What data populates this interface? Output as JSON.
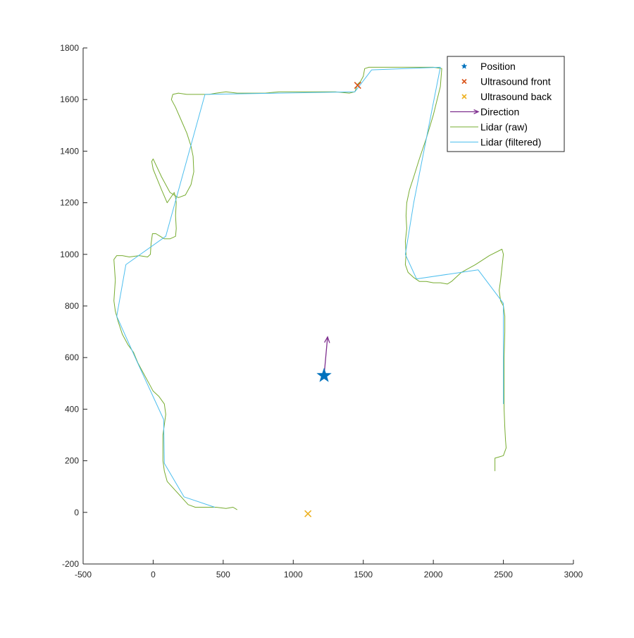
{
  "chart_data": {
    "type": "line",
    "title": "",
    "xlabel": "",
    "ylabel": "",
    "xlim": [
      -500,
      3000
    ],
    "ylim": [
      -200,
      1800
    ],
    "xticks": [
      -500,
      0,
      500,
      1000,
      1500,
      2000,
      2500,
      3000
    ],
    "yticks": [
      -200,
      0,
      200,
      400,
      600,
      800,
      1000,
      1200,
      1400,
      1600,
      1800
    ],
    "x_tick_labels": [
      "-500",
      "0",
      "500",
      "1000",
      "1500",
      "2000",
      "2500",
      "3000"
    ],
    "y_tick_labels": [
      "-200",
      "0",
      "200",
      "400",
      "600",
      "800",
      "1000",
      "1200",
      "1400",
      "1600",
      "1800"
    ],
    "grid": false,
    "legend_position": "top-right",
    "series": [
      {
        "name": "Position",
        "kind": "marker",
        "marker": "star",
        "color": "#0072BD",
        "points": [
          [
            1220,
            530
          ]
        ]
      },
      {
        "name": "Ultrasound front",
        "kind": "marker",
        "marker": "x",
        "color": "#D95319",
        "points": [
          [
            1460,
            1655
          ]
        ]
      },
      {
        "name": "Ultrasound back",
        "kind": "marker",
        "marker": "x",
        "color": "#EDB120",
        "points": [
          [
            1105,
            -5
          ]
        ]
      },
      {
        "name": "Direction",
        "kind": "arrow",
        "color": "#7E2F8E",
        "from": [
          1220,
          530
        ],
        "to": [
          1245,
          680
        ]
      },
      {
        "name": "Lidar (raw)",
        "kind": "line",
        "color": "#77AC30",
        "points": [
          [
            600,
            10
          ],
          [
            570,
            20
          ],
          [
            520,
            15
          ],
          [
            450,
            20
          ],
          [
            400,
            20
          ],
          [
            300,
            20
          ],
          [
            250,
            30
          ],
          [
            200,
            60
          ],
          [
            150,
            90
          ],
          [
            100,
            120
          ],
          [
            80,
            160
          ],
          [
            70,
            200
          ],
          [
            70,
            260
          ],
          [
            70,
            300
          ],
          [
            80,
            340
          ],
          [
            90,
            380
          ],
          [
            80,
            420
          ],
          [
            40,
            450
          ],
          [
            0,
            470
          ],
          [
            -30,
            500
          ],
          [
            -80,
            550
          ],
          [
            -110,
            580
          ],
          [
            -140,
            620
          ],
          [
            -180,
            650
          ],
          [
            -220,
            690
          ],
          [
            -250,
            740
          ],
          [
            -270,
            780
          ],
          [
            -280,
            820
          ],
          [
            -275,
            860
          ],
          [
            -270,
            900
          ],
          [
            -275,
            940
          ],
          [
            -280,
            980
          ],
          [
            -260,
            995
          ],
          [
            -220,
            995
          ],
          [
            -170,
            990
          ],
          [
            -100,
            995
          ],
          [
            -40,
            990
          ],
          [
            -20,
            1000
          ],
          [
            -15,
            1040
          ],
          [
            -5,
            1080
          ],
          [
            20,
            1080
          ],
          [
            50,
            1070
          ],
          [
            80,
            1060
          ],
          [
            120,
            1060
          ],
          [
            160,
            1070
          ],
          [
            165,
            1100
          ],
          [
            160,
            1150
          ],
          [
            165,
            1200
          ],
          [
            160,
            1220
          ],
          [
            150,
            1240
          ],
          [
            100,
            1200
          ],
          [
            60,
            1250
          ],
          [
            30,
            1290
          ],
          [
            0,
            1330
          ],
          [
            -10,
            1360
          ],
          [
            0,
            1370
          ],
          [
            60,
            1300
          ],
          [
            120,
            1240
          ],
          [
            180,
            1220
          ],
          [
            230,
            1230
          ],
          [
            270,
            1270
          ],
          [
            290,
            1320
          ],
          [
            285,
            1380
          ],
          [
            270,
            1420
          ],
          [
            240,
            1470
          ],
          [
            200,
            1520
          ],
          [
            160,
            1570
          ],
          [
            130,
            1600
          ],
          [
            140,
            1620
          ],
          [
            180,
            1625
          ],
          [
            240,
            1620
          ],
          [
            300,
            1620
          ],
          [
            350,
            1620
          ],
          [
            400,
            1620
          ],
          [
            450,
            1625
          ],
          [
            520,
            1630
          ],
          [
            600,
            1625
          ],
          [
            700,
            1625
          ],
          [
            800,
            1625
          ],
          [
            900,
            1630
          ],
          [
            1000,
            1630
          ],
          [
            1100,
            1630
          ],
          [
            1200,
            1630
          ],
          [
            1300,
            1630
          ],
          [
            1400,
            1625
          ],
          [
            1440,
            1630
          ],
          [
            1460,
            1660
          ],
          [
            1480,
            1670
          ],
          [
            1500,
            1690
          ],
          [
            1510,
            1720
          ],
          [
            1540,
            1725
          ],
          [
            1600,
            1725
          ],
          [
            1700,
            1725
          ],
          [
            1800,
            1725
          ],
          [
            1900,
            1725
          ],
          [
            2000,
            1725
          ],
          [
            2060,
            1720
          ],
          [
            2050,
            1650
          ],
          [
            2000,
            1540
          ],
          [
            1950,
            1450
          ],
          [
            1900,
            1370
          ],
          [
            1860,
            1300
          ],
          [
            1830,
            1250
          ],
          [
            1810,
            1200
          ],
          [
            1805,
            1150
          ],
          [
            1810,
            1100
          ],
          [
            1800,
            1050
          ],
          [
            1805,
            1000
          ],
          [
            1800,
            960
          ],
          [
            1820,
            930
          ],
          [
            1860,
            910
          ],
          [
            1900,
            895
          ],
          [
            1950,
            895
          ],
          [
            2000,
            890
          ],
          [
            2050,
            890
          ],
          [
            2100,
            885
          ],
          [
            2130,
            895
          ],
          [
            2200,
            930
          ],
          [
            2300,
            960
          ],
          [
            2400,
            995
          ],
          [
            2490,
            1020
          ],
          [
            2500,
            1000
          ],
          [
            2490,
            950
          ],
          [
            2480,
            900
          ],
          [
            2470,
            860
          ],
          [
            2480,
            820
          ],
          [
            2500,
            800
          ],
          [
            2510,
            760
          ],
          [
            2510,
            700
          ],
          [
            2505,
            600
          ],
          [
            2505,
            500
          ],
          [
            2505,
            400
          ],
          [
            2510,
            330
          ],
          [
            2515,
            280
          ],
          [
            2520,
            250
          ],
          [
            2500,
            220
          ],
          [
            2470,
            215
          ],
          [
            2440,
            210
          ],
          [
            2440,
            190
          ],
          [
            2440,
            160
          ]
        ]
      },
      {
        "name": "Lidar (filtered)",
        "kind": "line",
        "color": "#4DBEEE",
        "points": [
          [
            440,
            20
          ],
          [
            220,
            60
          ],
          [
            80,
            190
          ],
          [
            75,
            360
          ],
          [
            -120,
            590
          ],
          [
            -260,
            760
          ],
          [
            -195,
            960
          ],
          [
            90,
            1070
          ],
          [
            370,
            1620
          ],
          [
            1440,
            1630
          ],
          [
            1560,
            1715
          ],
          [
            2050,
            1725
          ],
          [
            1860,
            1200
          ],
          [
            1800,
            1000
          ],
          [
            1880,
            905
          ],
          [
            2320,
            940
          ],
          [
            2500,
            810
          ],
          [
            2500,
            420
          ]
        ]
      }
    ]
  }
}
